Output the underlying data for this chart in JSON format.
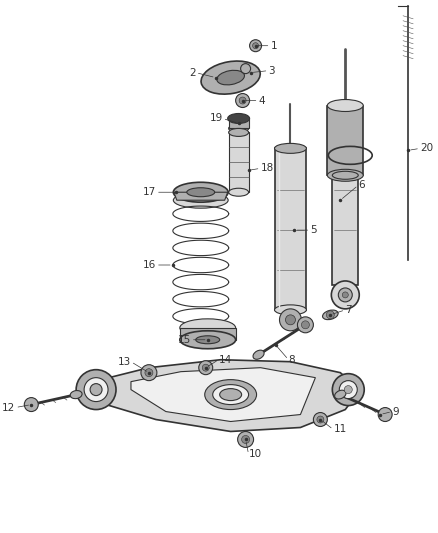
{
  "background_color": "#ffffff",
  "line_color": "#333333",
  "label_color": "#333333",
  "font_size": 7.5,
  "gray_light": "#d8d8d8",
  "gray_mid": "#b0b0b0",
  "gray_dark": "#888888",
  "gray_stroke": "#555555"
}
